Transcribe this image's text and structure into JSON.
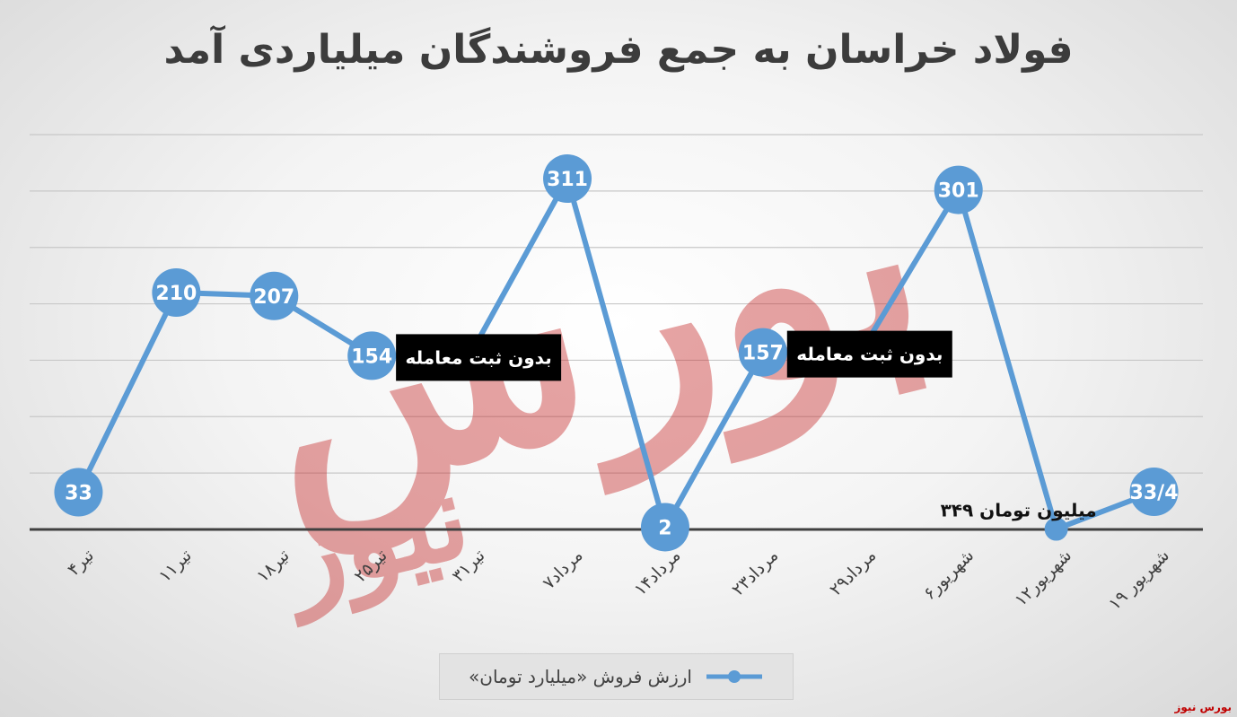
{
  "chart_data": {
    "type": "line",
    "title": "فولاد خراسان به جمع فروشندگان میلیاردی آمد",
    "categories": [
      "۴تیر",
      "۱۱تیر",
      "۱۸تیر",
      "۲۵تیر",
      "۳۱تیر",
      "۷مرداد",
      "۱۴مرداد",
      "۲۳مرداد",
      "۲۹مرداد",
      "۶شهریور",
      "۱۲شهریور",
      "۱۹ شهریور"
    ],
    "series": [
      {
        "name": "ارزش فروش «میلیارد تومان»",
        "values": [
          33,
          210,
          207,
          154,
          154,
          311,
          2,
          157,
          157,
          301,
          0.349,
          33.4
        ],
        "point_labels": [
          "33",
          "210",
          "207",
          "154",
          "",
          "311",
          "2",
          "157",
          "",
          "301",
          "",
          "33/4"
        ],
        "color": "#5b9bd5"
      }
    ],
    "annotations": [
      {
        "category_index": 4,
        "text": "بدون ثبت معامله",
        "style": "black-box"
      },
      {
        "category_index": 8,
        "text": "بدون ثبت معامله",
        "style": "black-box"
      },
      {
        "category_index": 10,
        "text": "۳۴۹ میلیون تومان",
        "style": "plain"
      }
    ],
    "ylim": [
      0,
      350
    ],
    "grid": true,
    "legend": "bottom"
  },
  "watermark_text": "بورس نیوز",
  "footer_brand": "بورس نیوز"
}
